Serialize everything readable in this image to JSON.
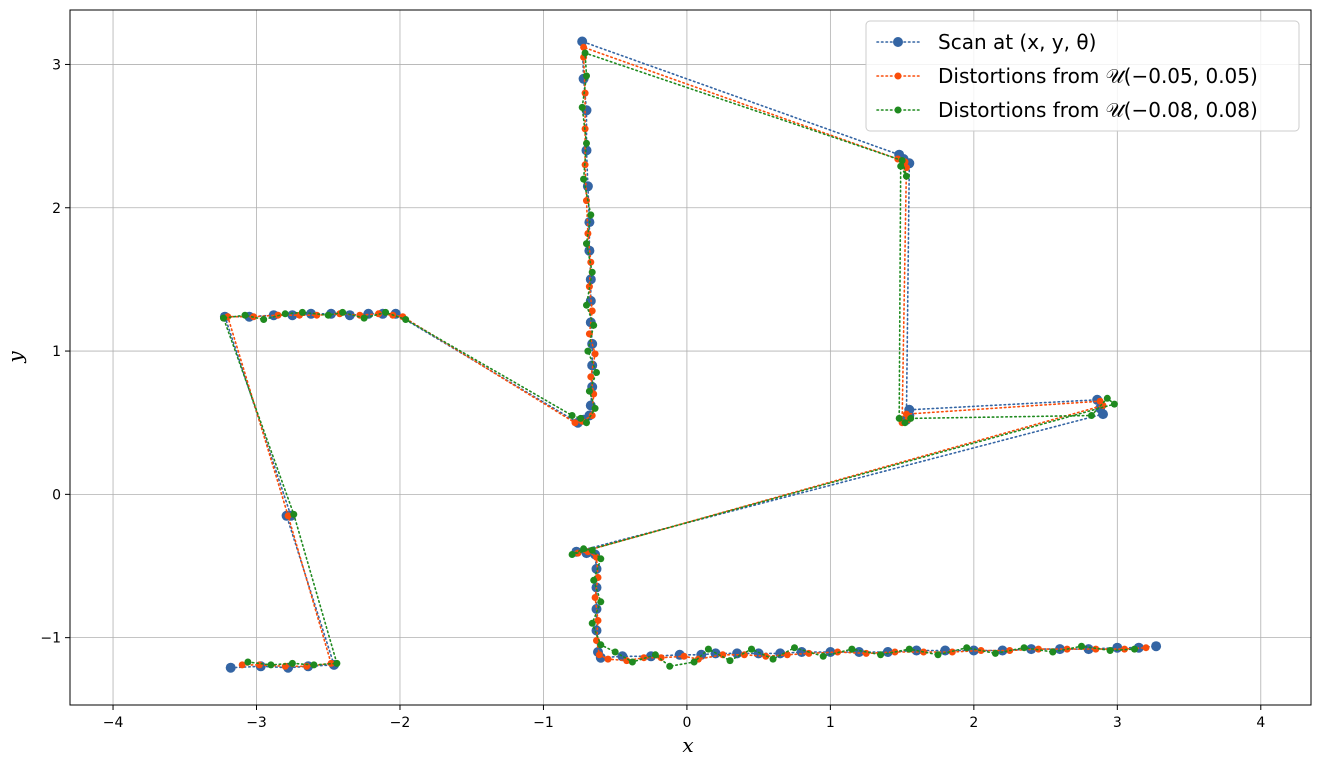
{
  "chart_data": {
    "type": "scatter",
    "xlabel": "x",
    "ylabel": "y",
    "xlim": [
      -4.3,
      4.35
    ],
    "ylim": [
      -1.47,
      3.38
    ],
    "xticks": [
      -4,
      -3,
      -2,
      -1,
      0,
      1,
      2,
      3,
      4
    ],
    "yticks": [
      -1,
      0,
      1,
      2,
      3
    ],
    "xtick_labels": [
      "−4",
      "−3",
      "−2",
      "−1",
      "0",
      "1",
      "2",
      "3",
      "4"
    ],
    "ytick_labels": [
      "−1",
      "0",
      "1",
      "2",
      "3"
    ],
    "grid": true,
    "legend_position": "top-right",
    "series": [
      {
        "name": "Scan at (x, y, θ)",
        "legend_label": "Scan at (x, y, θ)",
        "color": "#3465a4",
        "marker_size": 5,
        "linestyle": "dotted",
        "points": [
          [
            -3.18,
            -1.21
          ],
          [
            -2.97,
            -1.2
          ],
          [
            -2.78,
            -1.21
          ],
          [
            -2.64,
            -1.2
          ],
          [
            -2.46,
            -1.19
          ],
          [
            -2.79,
            -0.15
          ],
          [
            -2.76,
            -0.15
          ],
          [
            -3.22,
            1.24
          ],
          [
            -3.05,
            1.24
          ],
          [
            -2.88,
            1.25
          ],
          [
            -2.75,
            1.25
          ],
          [
            -2.62,
            1.26
          ],
          [
            -2.48,
            1.26
          ],
          [
            -2.35,
            1.25
          ],
          [
            -2.22,
            1.26
          ],
          [
            -2.12,
            1.26
          ],
          [
            -2.03,
            1.26
          ],
          [
            -0.76,
            0.5
          ],
          [
            -0.72,
            0.52
          ],
          [
            -0.68,
            0.55
          ],
          [
            -0.67,
            0.62
          ],
          [
            -0.66,
            0.75
          ],
          [
            -0.66,
            0.9
          ],
          [
            -0.66,
            1.05
          ],
          [
            -0.67,
            1.2
          ],
          [
            -0.67,
            1.35
          ],
          [
            -0.67,
            1.5
          ],
          [
            -0.68,
            1.7
          ],
          [
            -0.68,
            1.9
          ],
          [
            -0.69,
            2.15
          ],
          [
            -0.7,
            2.4
          ],
          [
            -0.7,
            2.68
          ],
          [
            -0.72,
            2.9
          ],
          [
            -0.73,
            3.16
          ],
          [
            1.48,
            2.37
          ],
          [
            1.51,
            2.34
          ],
          [
            1.55,
            2.31
          ],
          [
            1.53,
            0.52
          ],
          [
            1.55,
            0.55
          ],
          [
            1.55,
            0.59
          ],
          [
            2.86,
            0.66
          ],
          [
            2.88,
            0.6
          ],
          [
            2.9,
            0.56
          ],
          [
            -0.77,
            -0.4
          ],
          [
            -0.7,
            -0.41
          ],
          [
            -0.64,
            -0.42
          ],
          [
            -0.63,
            -0.52
          ],
          [
            -0.63,
            -0.65
          ],
          [
            -0.63,
            -0.8
          ],
          [
            -0.63,
            -0.95
          ],
          [
            -0.62,
            -1.1
          ],
          [
            -0.6,
            -1.14
          ],
          [
            -0.45,
            -1.13
          ],
          [
            -0.25,
            -1.13
          ],
          [
            -0.05,
            -1.12
          ],
          [
            0.1,
            -1.12
          ],
          [
            0.2,
            -1.11
          ],
          [
            0.35,
            -1.11
          ],
          [
            0.5,
            -1.11
          ],
          [
            0.65,
            -1.11
          ],
          [
            0.8,
            -1.1
          ],
          [
            1.0,
            -1.1
          ],
          [
            1.2,
            -1.1
          ],
          [
            1.4,
            -1.1
          ],
          [
            1.6,
            -1.09
          ],
          [
            1.8,
            -1.09
          ],
          [
            2.0,
            -1.09
          ],
          [
            2.2,
            -1.09
          ],
          [
            2.4,
            -1.08
          ],
          [
            2.6,
            -1.08
          ],
          [
            2.8,
            -1.08
          ],
          [
            3.0,
            -1.07
          ],
          [
            3.15,
            -1.07
          ],
          [
            3.27,
            -1.06
          ]
        ]
      },
      {
        "name": "Distortions from 𝒰(−0.05, 0.05)",
        "legend_label": "Distortions from 𝒰(−0.05, 0.05)",
        "color": "#fa4d0a",
        "marker_size": 3.5,
        "linestyle": "dotted",
        "points": [
          [
            -3.1,
            -1.19
          ],
          [
            -2.98,
            -1.19
          ],
          [
            -2.8,
            -1.2
          ],
          [
            -2.65,
            -1.2
          ],
          [
            -2.48,
            -1.18
          ],
          [
            -2.78,
            -0.15
          ],
          [
            -3.2,
            1.24
          ],
          [
            -3.02,
            1.24
          ],
          [
            -2.85,
            1.25
          ],
          [
            -2.7,
            1.25
          ],
          [
            -2.58,
            1.25
          ],
          [
            -2.42,
            1.26
          ],
          [
            -2.28,
            1.25
          ],
          [
            -2.15,
            1.26
          ],
          [
            -2.05,
            1.25
          ],
          [
            -1.98,
            1.24
          ],
          [
            -0.78,
            0.5
          ],
          [
            -0.73,
            0.51
          ],
          [
            -0.66,
            0.55
          ],
          [
            -0.65,
            0.7
          ],
          [
            -0.67,
            0.82
          ],
          [
            -0.64,
            0.98
          ],
          [
            -0.68,
            1.12
          ],
          [
            -0.66,
            1.28
          ],
          [
            -0.68,
            1.45
          ],
          [
            -0.67,
            1.62
          ],
          [
            -0.69,
            1.82
          ],
          [
            -0.7,
            2.05
          ],
          [
            -0.71,
            2.3
          ],
          [
            -0.71,
            2.55
          ],
          [
            -0.71,
            2.8
          ],
          [
            -0.72,
            3.05
          ],
          [
            -0.72,
            3.12
          ],
          [
            1.47,
            2.34
          ],
          [
            1.52,
            2.32
          ],
          [
            1.53,
            2.28
          ],
          [
            1.5,
            0.5
          ],
          [
            1.54,
            0.52
          ],
          [
            1.53,
            0.56
          ],
          [
            2.88,
            0.65
          ],
          [
            2.9,
            0.62
          ],
          [
            -0.76,
            -0.41
          ],
          [
            -0.69,
            -0.4
          ],
          [
            -0.63,
            -0.44
          ],
          [
            -0.62,
            -0.58
          ],
          [
            -0.64,
            -0.72
          ],
          [
            -0.62,
            -0.88
          ],
          [
            -0.63,
            -1.02
          ],
          [
            -0.61,
            -1.12
          ],
          [
            -0.55,
            -1.15
          ],
          [
            -0.42,
            -1.16
          ],
          [
            -0.3,
            -1.14
          ],
          [
            -0.18,
            -1.14
          ],
          [
            -0.02,
            -1.13
          ],
          [
            0.08,
            -1.15
          ],
          [
            0.25,
            -1.12
          ],
          [
            0.4,
            -1.12
          ],
          [
            0.55,
            -1.13
          ],
          [
            0.7,
            -1.12
          ],
          [
            0.85,
            -1.11
          ],
          [
            1.05,
            -1.1
          ],
          [
            1.25,
            -1.11
          ],
          [
            1.45,
            -1.1
          ],
          [
            1.65,
            -1.1
          ],
          [
            1.85,
            -1.1
          ],
          [
            2.05,
            -1.09
          ],
          [
            2.25,
            -1.09
          ],
          [
            2.45,
            -1.08
          ],
          [
            2.65,
            -1.08
          ],
          [
            2.85,
            -1.08
          ],
          [
            3.05,
            -1.08
          ],
          [
            3.2,
            -1.07
          ]
        ]
      },
      {
        "name": "Distortions from 𝒰(−0.08, 0.08)",
        "legend_label": "Distortions from 𝒰(−0.08, 0.08)",
        "color": "#1f8a1f",
        "marker_size": 3.5,
        "linestyle": "dotted",
        "points": [
          [
            -3.06,
            -1.17
          ],
          [
            -2.9,
            -1.19
          ],
          [
            -2.75,
            -1.18
          ],
          [
            -2.6,
            -1.19
          ],
          [
            -2.44,
            -1.18
          ],
          [
            -2.74,
            -0.14
          ],
          [
            -3.23,
            1.23
          ],
          [
            -3.08,
            1.25
          ],
          [
            -2.95,
            1.22
          ],
          [
            -2.8,
            1.26
          ],
          [
            -2.68,
            1.27
          ],
          [
            -2.5,
            1.25
          ],
          [
            -2.4,
            1.27
          ],
          [
            -2.25,
            1.23
          ],
          [
            -2.1,
            1.27
          ],
          [
            -1.96,
            1.22
          ],
          [
            -0.8,
            0.55
          ],
          [
            -0.74,
            0.53
          ],
          [
            -0.7,
            0.5
          ],
          [
            -0.64,
            0.6
          ],
          [
            -0.68,
            0.72
          ],
          [
            -0.63,
            0.85
          ],
          [
            -0.69,
            1.0
          ],
          [
            -0.65,
            1.18
          ],
          [
            -0.7,
            1.32
          ],
          [
            -0.66,
            1.55
          ],
          [
            -0.7,
            1.75
          ],
          [
            -0.67,
            1.95
          ],
          [
            -0.72,
            2.2
          ],
          [
            -0.7,
            2.45
          ],
          [
            -0.73,
            2.7
          ],
          [
            -0.7,
            2.92
          ],
          [
            -0.71,
            3.08
          ],
          [
            1.5,
            2.33
          ],
          [
            1.53,
            2.22
          ],
          [
            1.49,
            2.29
          ],
          [
            1.48,
            0.53
          ],
          [
            1.52,
            0.5
          ],
          [
            1.56,
            0.53
          ],
          [
            2.82,
            0.55
          ],
          [
            2.93,
            0.67
          ],
          [
            2.98,
            0.63
          ],
          [
            -0.8,
            -0.42
          ],
          [
            -0.72,
            -0.38
          ],
          [
            -0.66,
            -0.39
          ],
          [
            -0.6,
            -0.45
          ],
          [
            -0.65,
            -0.6
          ],
          [
            -0.6,
            -0.75
          ],
          [
            -0.66,
            -0.9
          ],
          [
            -0.6,
            -1.05
          ],
          [
            -0.5,
            -1.1
          ],
          [
            -0.38,
            -1.17
          ],
          [
            -0.22,
            -1.12
          ],
          [
            -0.12,
            -1.2
          ],
          [
            0.05,
            -1.17
          ],
          [
            0.15,
            -1.08
          ],
          [
            0.3,
            -1.16
          ],
          [
            0.45,
            -1.08
          ],
          [
            0.6,
            -1.15
          ],
          [
            0.75,
            -1.07
          ],
          [
            0.95,
            -1.13
          ],
          [
            1.15,
            -1.08
          ],
          [
            1.35,
            -1.12
          ],
          [
            1.55,
            -1.08
          ],
          [
            1.75,
            -1.12
          ],
          [
            1.95,
            -1.07
          ],
          [
            2.15,
            -1.11
          ],
          [
            2.35,
            -1.07
          ],
          [
            2.55,
            -1.1
          ],
          [
            2.75,
            -1.06
          ],
          [
            2.95,
            -1.09
          ],
          [
            3.12,
            -1.08
          ]
        ]
      }
    ]
  }
}
